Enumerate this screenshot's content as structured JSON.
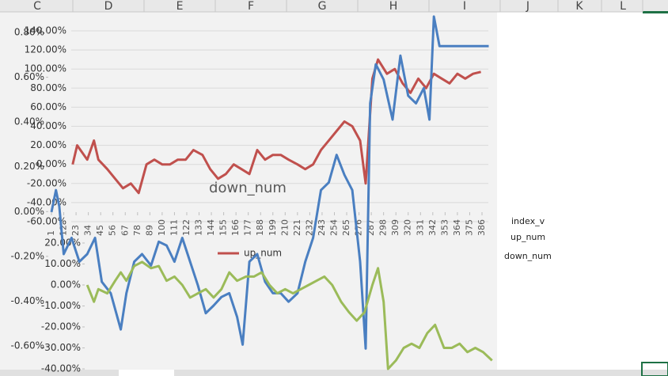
{
  "columns": [
    "C",
    "D",
    "E",
    "F",
    "G",
    "H",
    "I",
    "J",
    "K",
    "L"
  ],
  "chart": {
    "title": "down_num",
    "x_labels": [
      1,
      12,
      23,
      34,
      45,
      56,
      67,
      78,
      89,
      100,
      111,
      122,
      133,
      144,
      155,
      166,
      177,
      188,
      199,
      210,
      221,
      232,
      243,
      254,
      265,
      276,
      287,
      298,
      309,
      320,
      331,
      342,
      353,
      364,
      375,
      386
    ],
    "xlim": [
      1,
      386
    ],
    "axes": [
      {
        "ylim": [
          -60,
          140
        ],
        "ticks": [
          {
            "value": 140,
            "label": "140.00%"
          },
          {
            "value": 120,
            "label": "120.00%"
          },
          {
            "value": 100,
            "label": "100.00%"
          },
          {
            "value": 80,
            "label": "80.00%"
          },
          {
            "value": 60,
            "label": "60.00%"
          },
          {
            "value": 40,
            "label": "40.00%"
          },
          {
            "value": 20,
            "label": "20.00%"
          },
          {
            "value": 0,
            "label": "0.00%"
          },
          {
            "value": -20,
            "label": "-20.00%"
          },
          {
            "value": -40,
            "label": "-40.00%"
          },
          {
            "value": -60,
            "label": "-60.00%"
          }
        ]
      },
      {
        "ylim": [
          -0.6,
          0.8
        ],
        "ticks": [
          {
            "value": 0.8,
            "label": "0.80%"
          },
          {
            "value": 0.6,
            "label": "0.60%"
          },
          {
            "value": 0.4,
            "label": "0.40%"
          },
          {
            "value": 0.2,
            "label": "0.20%"
          },
          {
            "value": 0,
            "label": "0.00%"
          },
          {
            "value": -0.2,
            "label": "-0.20%"
          },
          {
            "value": -0.4,
            "label": "-0.40%"
          },
          {
            "value": -0.6,
            "label": "-0.60%"
          }
        ]
      },
      {
        "ylim": [
          -40,
          20
        ],
        "ticks": [
          {
            "value": 20,
            "label": "20.00%"
          },
          {
            "value": 10,
            "label": "10.00%"
          },
          {
            "value": 0,
            "label": "0.00%"
          },
          {
            "value": -10,
            "label": "-10.00%"
          },
          {
            "value": -20,
            "label": "-20.00%"
          },
          {
            "value": -30,
            "label": "-30.00%"
          },
          {
            "value": -40,
            "label": "-40.00%"
          }
        ]
      }
    ],
    "series": [
      {
        "color": "#c0504d",
        "axis": 0,
        "x": [
          20,
          24,
          27,
          33,
          39,
          43,
          51,
          58,
          65,
          72,
          79,
          86,
          93,
          100,
          107,
          114,
          121,
          128,
          136,
          143,
          150,
          157,
          164,
          171,
          178,
          185,
          192,
          199,
          206,
          213,
          221,
          228,
          235,
          242,
          249,
          256,
          263,
          270,
          277,
          282,
          288,
          293,
          301,
          308,
          315,
          322,
          329,
          336,
          343,
          350,
          357,
          364,
          371,
          378,
          385
        ],
        "values": [
          0,
          20,
          15,
          5,
          25,
          5,
          -5,
          -15,
          -25,
          -20,
          -30,
          0,
          5,
          0,
          0,
          5,
          5,
          15,
          10,
          -5,
          -15,
          -10,
          0,
          -5,
          -10,
          15,
          5,
          10,
          10,
          5,
          0,
          -5,
          0,
          15,
          25,
          35,
          45,
          40,
          25,
          -20,
          90,
          110,
          95,
          100,
          85,
          75,
          90,
          80,
          95,
          90,
          85,
          95,
          90,
          95,
          97
        ]
      },
      {
        "color": "#4a7fc1",
        "axis": 0,
        "x": [
          1,
          5,
          8,
          12,
          19,
          26,
          33,
          40,
          46,
          54,
          63,
          68,
          75,
          82,
          90,
          97,
          104,
          111,
          118,
          125,
          132,
          139,
          146,
          153,
          160,
          167,
          172,
          178,
          185,
          192,
          199,
          206,
          213,
          221,
          228,
          235,
          242,
          249,
          256,
          263,
          270,
          277,
          282,
          286,
          291,
          298,
          306,
          313,
          320,
          327,
          334,
          339,
          343,
          348,
          366,
          392
        ],
        "values": [
          -50,
          -27,
          -44,
          -94,
          -77,
          -102,
          -94,
          -77,
          -123,
          -135,
          -173,
          -135,
          -102,
          -94,
          -106,
          -81,
          -85,
          -102,
          -77,
          -102,
          -127,
          -156,
          -148,
          -139,
          -135,
          -160,
          -189,
          -102,
          -94,
          -123,
          -135,
          -135,
          -144,
          -135,
          -102,
          -77,
          -27,
          -19,
          10,
          -11,
          -27,
          -102,
          -193,
          64,
          105,
          89,
          47,
          114,
          72,
          64,
          80,
          47,
          155,
          124,
          124,
          124
        ]
      },
      {
        "color": "#9bbb59",
        "axis": 2,
        "x": [
          33,
          39,
          43,
          51,
          58,
          63,
          68,
          75,
          82,
          90,
          97,
          104,
          111,
          118,
          125,
          132,
          139,
          146,
          153,
          160,
          167,
          175,
          182,
          189,
          196,
          203,
          210,
          217,
          224,
          231,
          238,
          245,
          252,
          260,
          267,
          274,
          281,
          288,
          293,
          298,
          302,
          309,
          316,
          323,
          330,
          337,
          344,
          352,
          359,
          366,
          373,
          380,
          387,
          395
        ],
        "values": [
          0,
          -8,
          -2,
          -4,
          2,
          6,
          2,
          9,
          11,
          8,
          9,
          2,
          4,
          0,
          -6,
          -4,
          -2,
          -6,
          -2,
          6,
          2,
          4,
          4,
          6,
          0,
          -4,
          -2,
          -4,
          -2,
          0,
          2,
          4,
          0,
          -8,
          -13,
          -17,
          -13,
          0,
          8,
          -8,
          -40,
          -36,
          -30,
          -28,
          -30,
          -23,
          -19,
          -30,
          -30,
          -28,
          -32,
          -30,
          -32,
          -36
        ]
      }
    ],
    "inner_legend": "up_num",
    "side_legend": [
      "index_v",
      "up_num",
      "down_num"
    ]
  }
}
